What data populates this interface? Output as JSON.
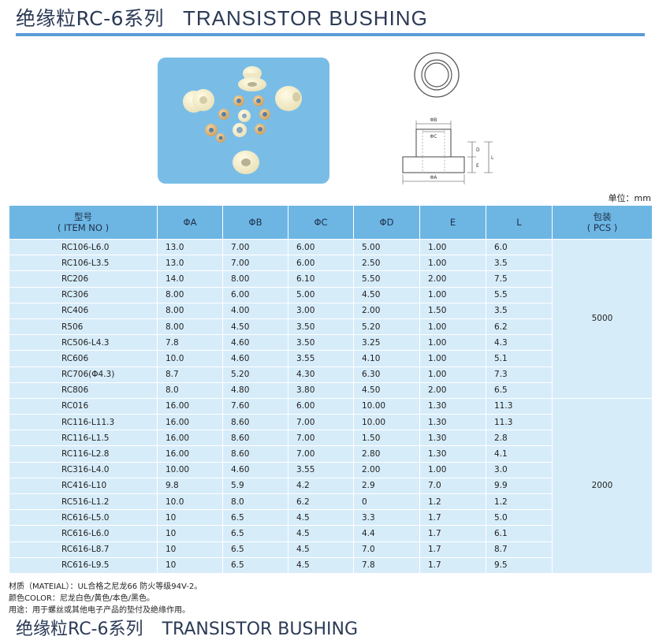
{
  "title": {
    "cn": "绝缘粒RC-6系列",
    "en": "TRANSISTOR BUSHING"
  },
  "unit_label": "单位：mm",
  "drawing_labels": {
    "phi_b": "ΦB",
    "phi_c": "ΦC",
    "phi_a": "ΦA",
    "d": "D",
    "e": "E",
    "l": "L"
  },
  "table": {
    "headers": {
      "model_cn": "型号",
      "model_en": "( ITEM NO )",
      "a": "ΦA",
      "b": "ΦB",
      "c": "ΦC",
      "d": "ΦD",
      "e": "E",
      "l": "L",
      "pack_cn": "包装",
      "pack_en": "( PCS )"
    },
    "groups": [
      {
        "pcs": "5000",
        "rows": [
          [
            "RC106-L6.0",
            "13.0",
            "7.00",
            "6.00",
            "5.00",
            "1.00",
            "6.0"
          ],
          [
            "RC106-L3.5",
            "13.0",
            "7.00",
            "6.00",
            "2.50",
            "1.00",
            "3.5"
          ],
          [
            "RC206",
            "14.0",
            "8.00",
            "6.10",
            "5.50",
            "2.00",
            "7.5"
          ],
          [
            "RC306",
            "8.00",
            "6.00",
            "5.00",
            "4.50",
            "1.00",
            "5.5"
          ],
          [
            "RC406",
            "8.00",
            "4.00",
            "3.00",
            "2.00",
            "1.50",
            "3.5"
          ],
          [
            "R506",
            "8.00",
            "4.50",
            "3.50",
            "5.20",
            "1.00",
            "6.2"
          ],
          [
            "RC506-L4.3",
            "7.8",
            "4.60",
            "3.50",
            "3.25",
            "1.00",
            "4.3"
          ],
          [
            "RC606",
            "10.0",
            "4.60",
            "3.55",
            "4.10",
            "1.00",
            "5.1"
          ],
          [
            "RC706(Φ4.3)",
            "8.7",
            "5.20",
            "4.30",
            "6.30",
            "1.00",
            "7.3"
          ],
          [
            "RC806",
            "8.0",
            "4.80",
            "3.80",
            "4.50",
            "2.00",
            "6.5"
          ]
        ]
      },
      {
        "pcs": "2000",
        "rows": [
          [
            "RC016",
            "16.00",
            "7.60",
            "6.00",
            "10.00",
            "1.30",
            "11.3"
          ],
          [
            "RC116-L11.3",
            "16.00",
            "8.60",
            "7.00",
            "10.00",
            "1.30",
            "11.3"
          ],
          [
            "RC116-L1.5",
            "16.00",
            "8.60",
            "7.00",
            "1.50",
            "1.30",
            "2.8"
          ],
          [
            "RC116-L2.8",
            "16.00",
            "8.60",
            "7.00",
            "2.80",
            "1.30",
            "4.1"
          ],
          [
            "RC316-L4.0",
            "10.00",
            "4.60",
            "3.55",
            "2.00",
            "1.00",
            "3.0"
          ],
          [
            "RC416-L10",
            "9.8",
            "5.9",
            "4.2",
            "2.9",
            "7.0",
            "9.9"
          ],
          [
            "RC516-L1.2",
            "10.0",
            "8.0",
            "6.2",
            "0",
            "1.2",
            "1.2"
          ],
          [
            "RC616-L5.0",
            "10",
            "6.5",
            "4.5",
            "3.3",
            "1.7",
            "5.0"
          ],
          [
            "RC616-L6.0",
            "10",
            "6.5",
            "4.5",
            "4.4",
            "1.7",
            "6.1"
          ],
          [
            "RC616-L8.7",
            "10",
            "6.5",
            "4.5",
            "7.0",
            "1.7",
            "8.7"
          ],
          [
            "RC616-L9.5",
            "10",
            "6.5",
            "4.5",
            "7.8",
            "1.7",
            "9.5"
          ]
        ]
      }
    ]
  },
  "notes": {
    "material": "材质（MATEIAL）：UL合格之尼龙66 防火等级94V-2。",
    "color": "颜色COLOR：尼龙白色/黄色/本色/黑色。",
    "usage": "用途：用于螺丝或其他电子产品的垫付及绝缘作用。"
  },
  "colors": {
    "header_bg": "#6db6e4",
    "row_bg": "#d7ecf9",
    "title_rule": "#5b9bd8",
    "photo_bg": "#79bde7"
  }
}
